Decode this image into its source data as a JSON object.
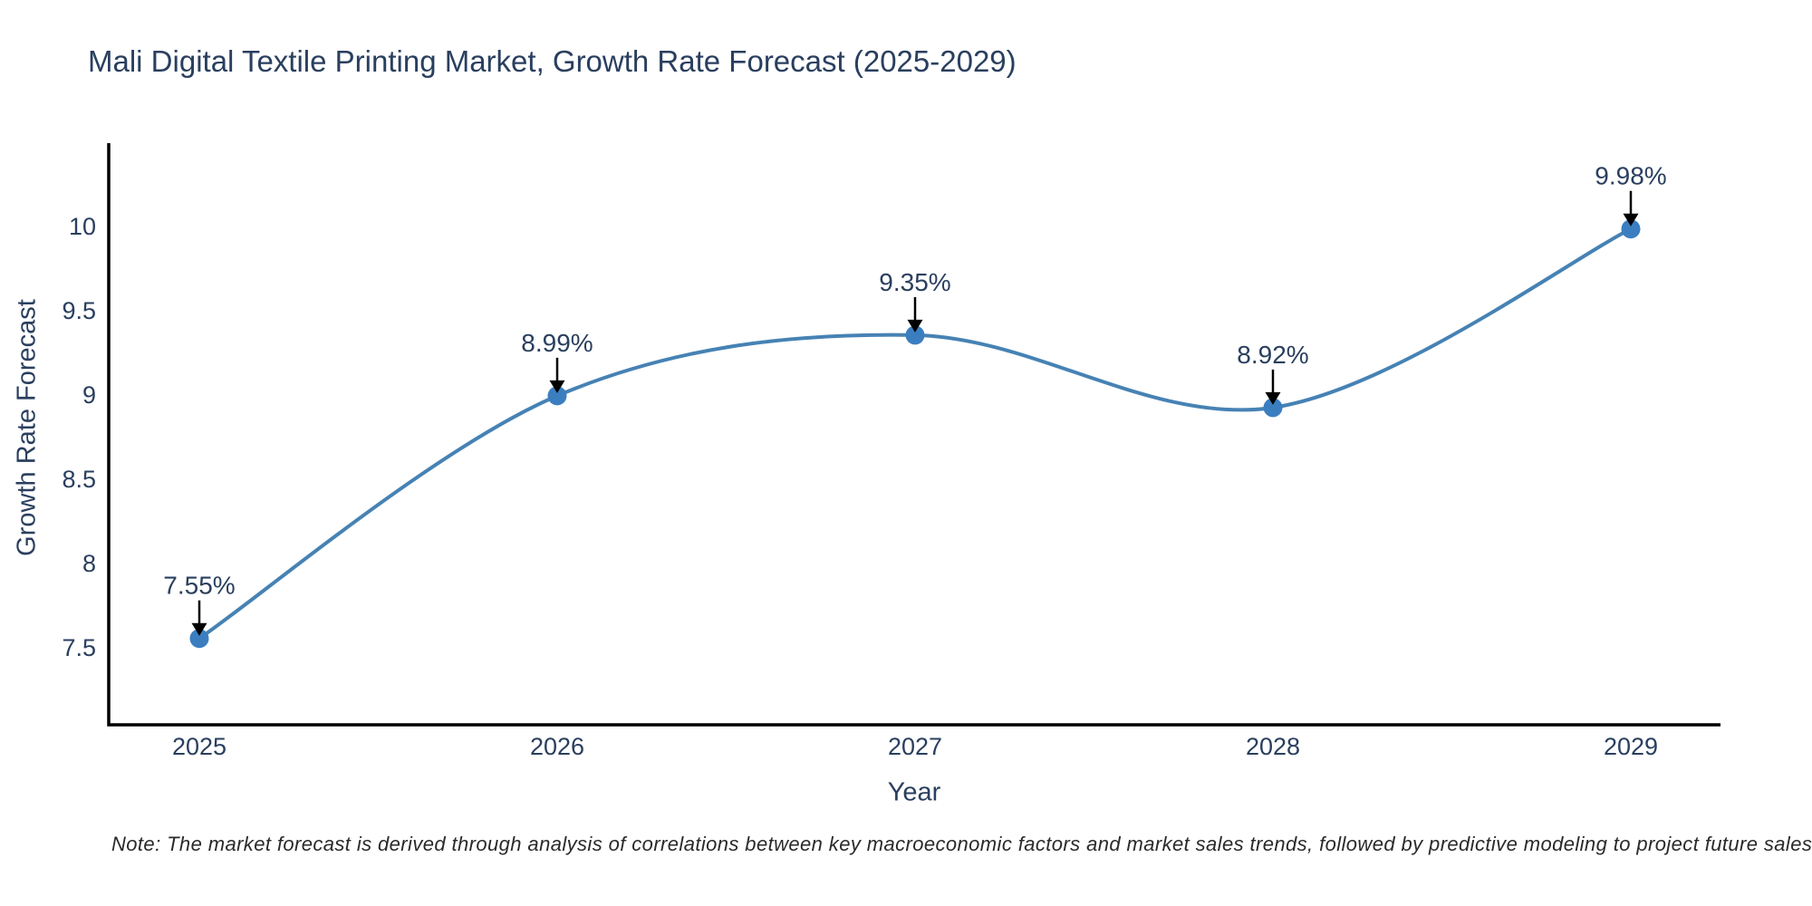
{
  "chart_data": {
    "type": "line",
    "title": "Mali Digital Textile Printing Market, Growth Rate Forecast (2025-2029)",
    "x": [
      2025,
      2026,
      2027,
      2028,
      2029
    ],
    "x_tick_labels": [
      "2025",
      "2026",
      "2027",
      "2028",
      "2029"
    ],
    "values": [
      7.55,
      8.99,
      9.35,
      8.92,
      9.98
    ],
    "point_labels": [
      "7.55%",
      "8.99%",
      "9.35%",
      "8.92%",
      "9.98%"
    ],
    "series_name": "Growth Rate Forecast",
    "xlabel": "Year",
    "ylabel": "Growth Rate Forecast",
    "y_ticks": [
      7.5,
      8,
      8.5,
      9,
      9.5,
      10
    ],
    "y_tick_labels": [
      "7.5",
      "8",
      "8.5",
      "9",
      "9.5",
      "10"
    ],
    "ylim": [
      7.04,
      10.49
    ],
    "line_shape": "spline",
    "grid": false,
    "legend": "none",
    "note": "Note: The market forecast is derived through analysis of correlations between key macroeconomic factors and market sales trends, followed by predictive modeling to project future sales",
    "colors": {
      "line": "#4682b4",
      "marker": "#3b7ec0",
      "arrow": "#000000",
      "axis": "#000000",
      "text": "#2a3f5f"
    }
  }
}
